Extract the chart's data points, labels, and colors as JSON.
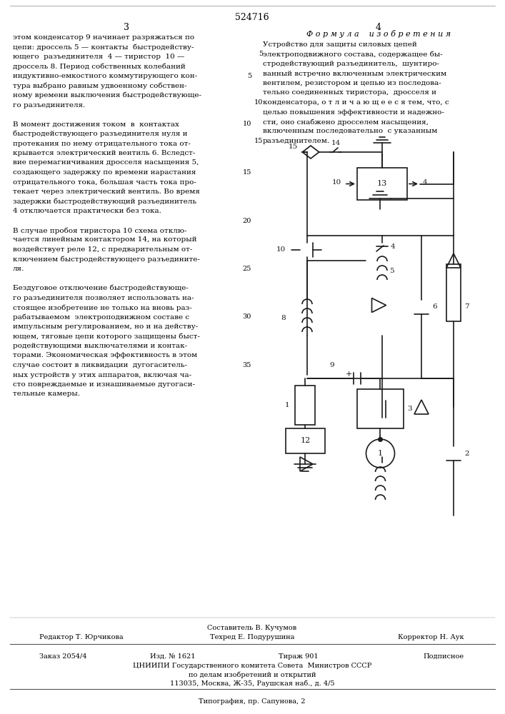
{
  "patent_number": "524716",
  "page_left": "3",
  "page_right": "4",
  "left_text": [
    "этом конденсатор 9 начинает разряжаться по",
    "цепи: дроссель 5 — контакты  быстродейству-",
    "ющего  разъединителя  4 — тиристор  10 —",
    "дроссель 8. Период собственных колебаний",
    "индуктивно-емкостного коммутирующего кон-",
    "тура выбрано равным удвоенному собствен-",
    "ному времени выключения быстродействующе-",
    "го разъединителя.",
    "",
    "В момент достижения током  в  контактах",
    "быстродействующего разъединителя нуля и",
    "протекания по нему отрицательного тока от-",
    "крывается электрический вентиль 6. Вследст-",
    "вие перемагничивания дросселя насыщения 5,",
    "создающего задержку по времени нарастания",
    "отрицательного тока, большая часть тока про-",
    "текает через электрический вентиль. Во время",
    "задержки быстродействующий разъединитель",
    "4 отключается практически без тока.",
    "",
    "В случае пробоя тиристора 10 схема отклю-",
    "чается линейным контактором 14, на который",
    "воздействует реле 12, с предварительным от-",
    "ключением быстродействующего разъедините-",
    "ля.",
    "",
    "Бездуговое отключение быстродействующе-",
    "го разъединителя позволяет использовать на-",
    "стоящее изобретение не только на вновь раз-",
    "рабатываемом  электроподвижном составе с",
    "импульсным регулированием, но и на действу-",
    "ющем, тяговые цепи которого защищены быст-",
    "родействующими выключателями и контак-",
    "торами. Экономическая эффективность в этом",
    "случае состоит в ликвидации  дугогаситель-",
    "ных устройств у этих аппаратов, включая ча-",
    "сто повреждаемые и изнашиваемые дугогаси-",
    "тельные камеры."
  ],
  "right_header": "Ф о р м у л а    и з о б р е т е н и я",
  "right_text": [
    "Устройство для защиты силовых цепей",
    "электроподвижного состава, содержащее бы-",
    "стродействующий разъединитель,  шунтиро-",
    "ванный встречно включенным электрическим",
    "вентилем, резистором и цепью из последова-",
    "тельно соединенных тиристора,  дросселя и",
    "конденсатора, о т л и ч а ю щ е е с я тем, что, с",
    "целью повышения эффективности и надежно-",
    "сти, оно снабжено дросселем насыщения,",
    "включенным последовательно  с указанным",
    "разъединителем."
  ],
  "line_numbers_right": [
    "5",
    "10",
    "15",
    "20",
    "25",
    "30",
    "35"
  ],
  "footer_composer": "Составитель В. Кучумов",
  "footer_editor": "Редактор Т. Юрчикова",
  "footer_tech": "Техред Е. Подурушина",
  "footer_corrector": "Корректор Н. Аук",
  "footer_order": "Заказ 2054/4",
  "footer_pub": "Изд. № 1621",
  "footer_print": "Тираж 901",
  "footer_type": "Подписное",
  "footer_org": "ЦНИИПИ Государственного комитета Совета  Министров СССР",
  "footer_org2": "по делам изобретений и открытий",
  "footer_addr": "113035, Москва, Ж-35, Раушская наб., д. 4/5",
  "footer_print2": "Типография, пр. Сапунова, 2",
  "bg_color": "#ffffff",
  "text_color": "#000000"
}
